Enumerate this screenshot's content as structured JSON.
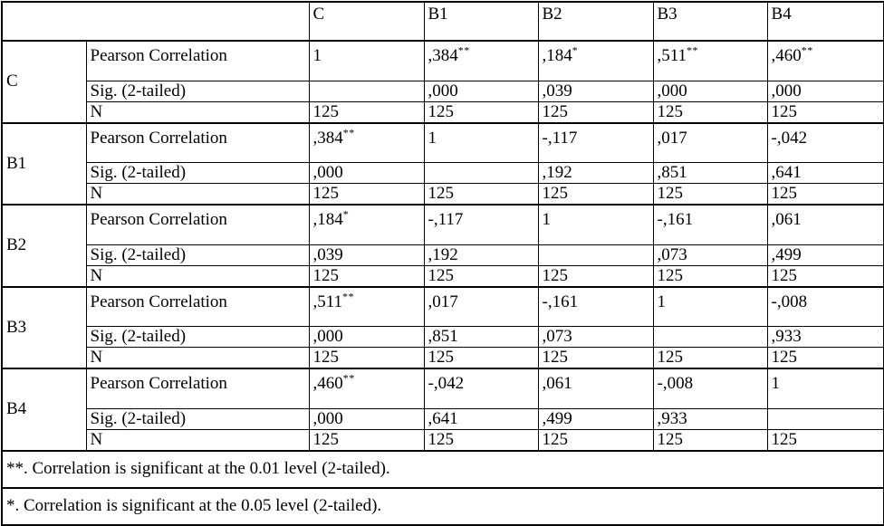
{
  "table": {
    "corner_cell": "",
    "column_headers": [
      "C",
      "B1",
      "B2",
      "B3",
      "B4"
    ],
    "row_stats": [
      "Pearson Correlation",
      "Sig. (2-tailed)",
      "N"
    ],
    "groups": [
      {
        "label": "C",
        "pearson": [
          "1",
          ",384**",
          ",184*",
          ",511**",
          ",460**"
        ],
        "sig": [
          "",
          ",000",
          ",039",
          ",000",
          ",000"
        ],
        "n": [
          "125",
          "125",
          "125",
          "125",
          "125"
        ]
      },
      {
        "label": "B1",
        "pearson": [
          ",384**",
          "1",
          "-,117",
          ",017",
          "-,042"
        ],
        "sig": [
          ",000",
          "",
          ",192",
          ",851",
          ",641"
        ],
        "n": [
          "125",
          "125",
          "125",
          "125",
          "125"
        ]
      },
      {
        "label": "B2",
        "pearson": [
          ",184*",
          "-,117",
          "1",
          "-,161",
          ",061"
        ],
        "sig": [
          ",039",
          ",192",
          "",
          ",073",
          ",499"
        ],
        "n": [
          "125",
          "125",
          "125",
          "125",
          "125"
        ]
      },
      {
        "label": "B3",
        "pearson": [
          ",511**",
          ",017",
          "-,161",
          "1",
          "-,008"
        ],
        "sig": [
          ",000",
          ",851",
          ",073",
          "",
          ",933"
        ],
        "n": [
          "125",
          "125",
          "125",
          "125",
          "125"
        ]
      },
      {
        "label": "B4",
        "pearson": [
          ",460**",
          "-,042",
          ",061",
          "-,008",
          "1"
        ],
        "sig": [
          ",000",
          ",641",
          ",499",
          ",933",
          ""
        ],
        "n": [
          "125",
          "125",
          "125",
          "125",
          "125"
        ]
      }
    ],
    "footnotes": [
      "**. Correlation is significant at the 0.01 level (2-tailed).",
      "*. Correlation is significant at the 0.05 level (2-tailed)."
    ],
    "colors": {
      "border": "#000000",
      "text": "#000000",
      "background": "#ffffff"
    }
  }
}
